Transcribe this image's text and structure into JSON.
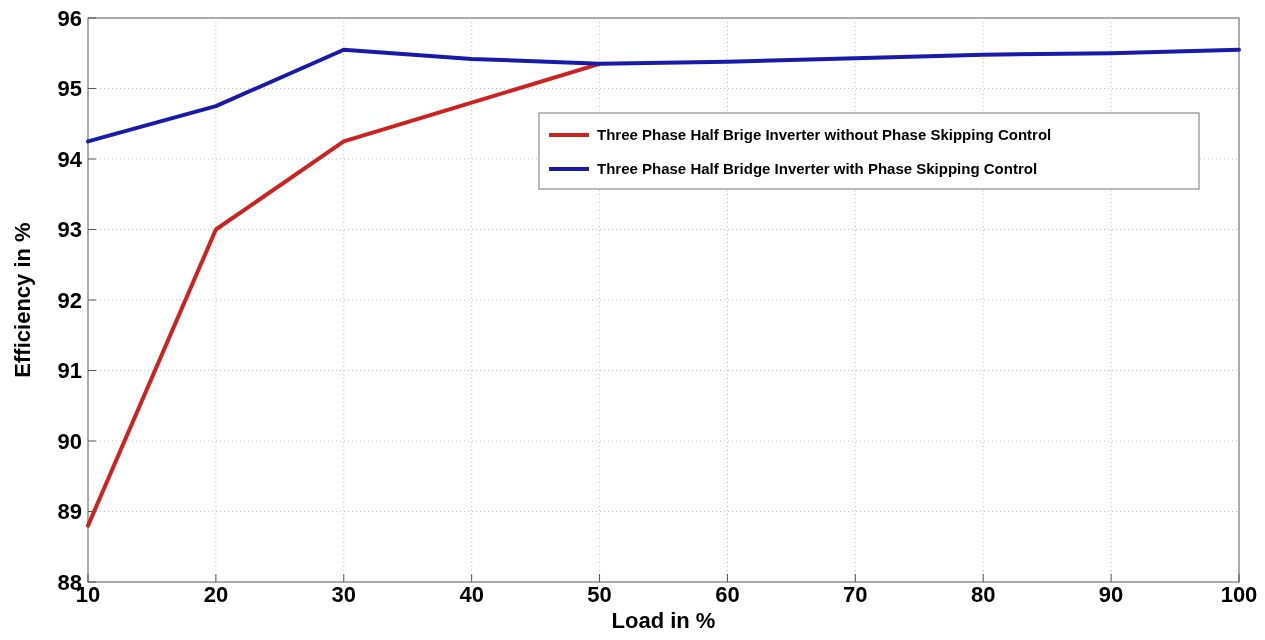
{
  "chart_data": {
    "type": "line",
    "xlabel": "Load in %",
    "ylabel": "Efficiency in %",
    "x": [
      10,
      20,
      30,
      40,
      50,
      60,
      70,
      80,
      90,
      100
    ],
    "series": [
      {
        "name": "Three Phase Half Brige Inverter without Phase Skipping Control",
        "color": "#cc2222",
        "values": [
          88.8,
          93.0,
          94.25,
          94.8,
          95.35,
          null,
          null,
          null,
          null,
          null
        ]
      },
      {
        "name": "Three Phase Half Bridge Inverter with Phase Skipping Control",
        "color": "#1a1aaa",
        "values": [
          94.25,
          94.75,
          95.55,
          95.42,
          95.35,
          95.38,
          95.43,
          95.48,
          95.5,
          95.55
        ]
      }
    ],
    "xlim": [
      10,
      100
    ],
    "xticks": [
      10,
      20,
      30,
      40,
      50,
      60,
      70,
      80,
      90,
      100
    ],
    "ylim": [
      88,
      96
    ],
    "yticks": [
      88,
      89,
      90,
      91,
      92,
      93,
      94,
      95,
      96
    ],
    "grid": true,
    "legend": "top right",
    "marker": "none",
    "line_style": "solid"
  }
}
